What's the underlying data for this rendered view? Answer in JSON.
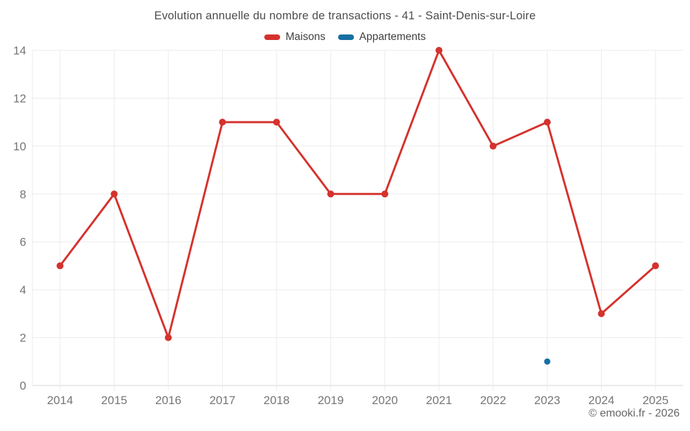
{
  "chart_data": {
    "type": "line",
    "title": "Evolution annuelle du nombre de transactions - 41 - Saint-Denis-sur-Loire",
    "x": [
      2014,
      2015,
      2016,
      2017,
      2018,
      2019,
      2020,
      2021,
      2022,
      2023,
      2024,
      2025
    ],
    "series": [
      {
        "name": "Maisons",
        "color": "#d5322d",
        "draw_line": true,
        "values": [
          5,
          8,
          2,
          11,
          11,
          8,
          8,
          14,
          10,
          11,
          3,
          5
        ]
      },
      {
        "name": "Appartements",
        "color": "#176fa3",
        "draw_line": false,
        "values": [
          null,
          null,
          null,
          null,
          null,
          null,
          null,
          null,
          null,
          1,
          null,
          null
        ]
      }
    ],
    "ylim": [
      0,
      14
    ],
    "yticks": [
      0,
      2,
      4,
      6,
      8,
      10,
      12,
      14
    ],
    "grid": true,
    "legend_position": "top"
  },
  "legend": {
    "items": [
      {
        "label": "Maisons",
        "color": "#d5322d"
      },
      {
        "label": "Appartements",
        "color": "#176fa3"
      }
    ]
  },
  "footer": {
    "credit": "© emooki.fr - 2026"
  },
  "colors": {
    "grid": "#ebebeb",
    "axis": "#d6d6d6",
    "tick_label": "#757575",
    "title_text": "#4c4c4c"
  }
}
